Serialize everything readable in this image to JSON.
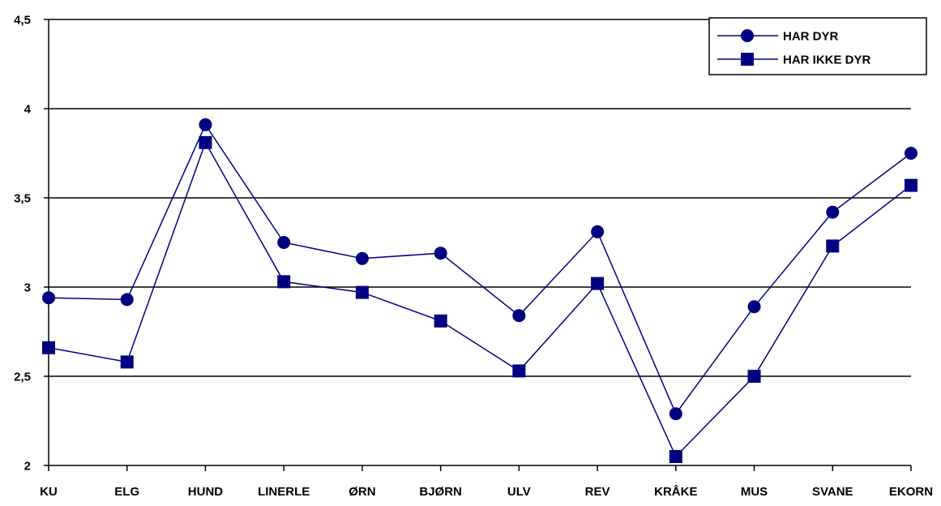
{
  "colors": {
    "series": "#000080",
    "axis": "#000000",
    "grid": "#000000",
    "background": "#ffffff"
  },
  "chart_data": {
    "type": "line",
    "title": "",
    "xlabel": "",
    "ylabel": "",
    "categories": [
      "KU",
      "ELG",
      "HUND",
      "LINERLE",
      "ØRN",
      "BJØRN",
      "ULV",
      "REV",
      "KRÅKE",
      "MUS",
      "SVANE",
      "EKORN"
    ],
    "ylim": [
      2,
      4.5
    ],
    "yticks": [
      2,
      2.5,
      3,
      3.5,
      4,
      4.5
    ],
    "ytick_labels": [
      "2",
      "2,5",
      "3",
      "3,5",
      "4",
      "4,5"
    ],
    "grid": true,
    "legend_position": "top-right",
    "series": [
      {
        "name": "HAR DYR",
        "marker": "circle",
        "values": [
          2.94,
          2.93,
          3.91,
          3.25,
          3.16,
          3.19,
          2.84,
          3.31,
          2.29,
          2.89,
          3.42,
          3.75
        ]
      },
      {
        "name": "HAR IKKE DYR",
        "marker": "square",
        "values": [
          2.66,
          2.58,
          3.81,
          3.03,
          2.97,
          2.81,
          2.53,
          3.02,
          2.05,
          2.5,
          3.23,
          3.57
        ]
      }
    ]
  }
}
